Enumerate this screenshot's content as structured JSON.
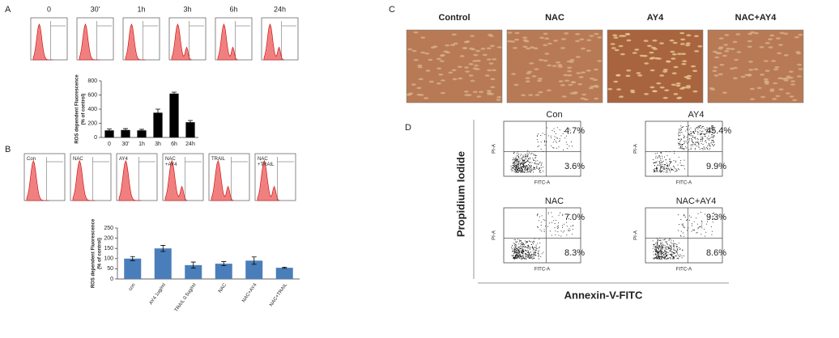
{
  "chart_data": [
    {
      "type": "bar",
      "y_label": [
        "ROS dependent Fluorescence",
        "(% of control)"
      ],
      "categories": [
        "0",
        "30'",
        "1h",
        "3h",
        "6h",
        "24h"
      ],
      "values": [
        100,
        105,
        100,
        350,
        620,
        215
      ],
      "errors": [
        20,
        20,
        15,
        50,
        20,
        25
      ],
      "color": "#000000",
      "ylim": [
        0,
        800
      ],
      "yticks": [
        0,
        200,
        400,
        600,
        800
      ]
    },
    {
      "type": "bar",
      "y_label": [
        "ROS dependent Fluorescence",
        "(% of control)"
      ],
      "categories": [
        "con",
        "AY4 1ug/ml",
        "TRAIL 0.5ug/ml",
        "NAC",
        "NAC+AY4",
        "NAC+TRAIL"
      ],
      "values": [
        100,
        150,
        68,
        75,
        90,
        55
      ],
      "errors": [
        10,
        15,
        15,
        10,
        18,
        3
      ],
      "color": "#4a7ebb",
      "ylim": [
        0,
        250
      ],
      "yticks": [
        0,
        50,
        100,
        150,
        200,
        250
      ]
    }
  ],
  "panels": {
    "a": {
      "label": "A",
      "histograms": [
        "0",
        "30'",
        "1h",
        "3h",
        "6h",
        "24h"
      ]
    },
    "b": {
      "label": "B",
      "histograms": [
        "Con",
        "NAC",
        "AY4",
        "NAC +AY4",
        "TRAIL",
        "NAC +TRAIL"
      ]
    },
    "c": {
      "label": "C",
      "images": [
        "Control",
        "NAC",
        "AY4",
        "NAC+AY4"
      ]
    },
    "d": {
      "label": "D",
      "y_label": "Propidium Iodide",
      "x_label": "Annexin-V-FITC",
      "plot_y_axis": "PI-A",
      "plot_x_axis": "FITC-A",
      "plots": [
        {
          "title": "Con",
          "upper_right": "4.7%",
          "lower_right": "3.6%"
        },
        {
          "title": "AY4",
          "upper_right": "45.4%",
          "lower_right": "9.9%"
        },
        {
          "title": "NAC",
          "upper_right": "7.0%",
          "lower_right": "8.3%"
        },
        {
          "title": "NAC+AY4",
          "upper_right": "9.3%",
          "lower_right": "8.6%"
        }
      ]
    }
  }
}
